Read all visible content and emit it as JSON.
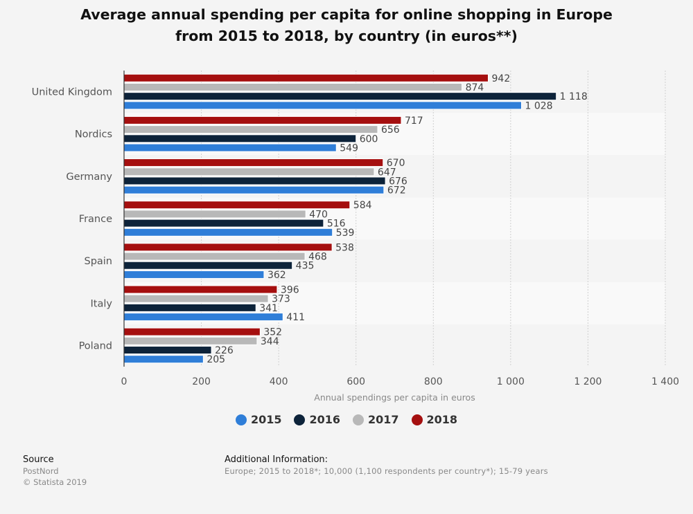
{
  "title_line1": "Average annual spending per capita for online shopping in Europe",
  "title_line2": "from 2015 to 2018, by country (in euros**)",
  "colors": {
    "2015": "#2f7ed8",
    "2016": "#0d233a",
    "2017": "#b8b8b8",
    "2018": "#a50f0f"
  },
  "chart_data": {
    "type": "bar",
    "orientation": "horizontal",
    "categories": [
      "United Kingdom",
      "Nordics",
      "Germany",
      "France",
      "Spain",
      "Italy",
      "Poland"
    ],
    "series": [
      {
        "name": "2018",
        "values": [
          942,
          717,
          670,
          584,
          538,
          396,
          352
        ],
        "labels": [
          "942",
          "717",
          "670",
          "584",
          "538",
          "396",
          "352"
        ]
      },
      {
        "name": "2017",
        "values": [
          874,
          656,
          647,
          470,
          468,
          373,
          344
        ],
        "labels": [
          "874",
          "656",
          "647",
          "470",
          "468",
          "373",
          "344"
        ]
      },
      {
        "name": "2016",
        "values": [
          1118,
          600,
          676,
          516,
          435,
          341,
          226
        ],
        "labels": [
          "1 118",
          "600",
          "676",
          "516",
          "435",
          "341",
          "226"
        ]
      },
      {
        "name": "2015",
        "values": [
          1028,
          549,
          672,
          539,
          362,
          411,
          205
        ],
        "labels": [
          "1 028",
          "549",
          "672",
          "539",
          "362",
          "411",
          "205"
        ]
      }
    ],
    "xlabel": "Annual spendings per capita in euros",
    "xlim": [
      0,
      1400
    ],
    "xticks": [
      0,
      200,
      400,
      600,
      800,
      1000,
      1200,
      1400
    ],
    "xtick_labels": [
      "0",
      "200",
      "400",
      "600",
      "800",
      "1 000",
      "1 200",
      "1 400"
    ],
    "grid": true,
    "legend_position": "bottom-center",
    "legend": [
      "2015",
      "2016",
      "2017",
      "2018"
    ]
  },
  "footer": {
    "source_label": "Source",
    "source_name": "PostNord",
    "copyright": "© Statista 2019",
    "additional_label": "Additional Information:",
    "additional_text": "Europe; 2015 to 2018*; 10,000 (1,100 respondents per country*); 15-79 years"
  }
}
